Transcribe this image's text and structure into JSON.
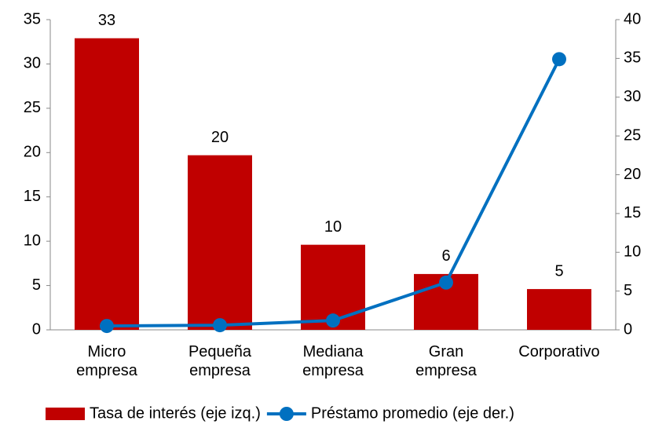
{
  "chart_data": {
    "type": "bar",
    "categories": [
      "Micro empresa",
      "Pequeña empresa",
      "Mediana empresa",
      "Gran empresa",
      "Corporativo"
    ],
    "series": [
      {
        "name": "Tasa de interés (eje izq.)",
        "type": "bar",
        "color": "#c00000",
        "values": [
          32.9,
          19.7,
          9.6,
          6.3,
          4.6
        ],
        "value_labels": [
          "33",
          "20",
          "10",
          "6",
          "5"
        ]
      },
      {
        "name": "Préstamo promedio (eje der.)",
        "type": "line",
        "axis": "y2",
        "color": "#0070c0",
        "values": [
          0.5,
          0.6,
          1.2,
          6.1,
          34.9
        ]
      }
    ],
    "ylim": [
      0,
      35
    ],
    "yticks": [
      0,
      5,
      10,
      15,
      20,
      25,
      30,
      35
    ],
    "y2lim": [
      0,
      40
    ],
    "y2ticks": [
      0,
      5,
      10,
      15,
      20,
      25,
      30,
      35,
      40
    ],
    "legend": "bottom"
  }
}
